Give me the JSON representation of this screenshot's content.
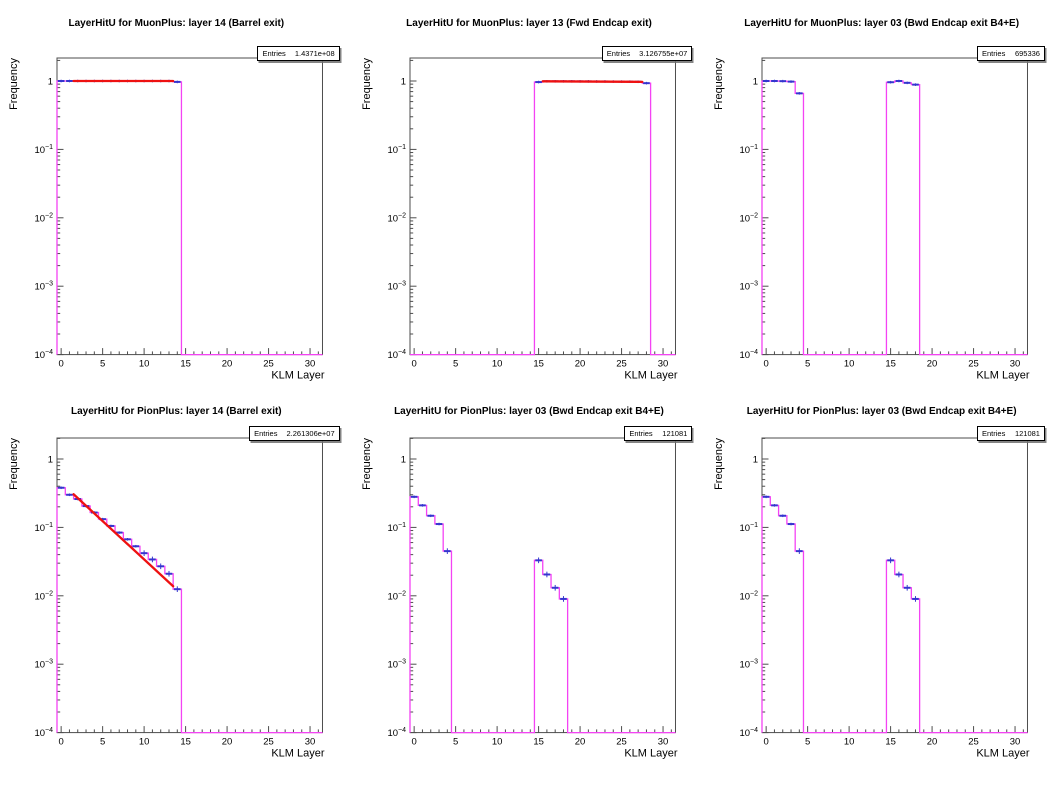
{
  "labels": {
    "entries": "Entries"
  },
  "colors": {
    "background": "#ffffff",
    "frame": "#4d4d4d",
    "hist_line": "#f443f4",
    "marker": "#3535cf",
    "fit_line": "#ee1111",
    "text": "#000000"
  },
  "axes": {
    "x": {
      "title": "KLM Layer",
      "min": -0.5,
      "max": 31.5,
      "major_ticks": [
        0,
        5,
        10,
        15,
        20,
        25,
        30
      ],
      "minor_step": 1
    },
    "y": {
      "title": "Frequency",
      "scale": "log",
      "min": 0.0001,
      "max": 2.1,
      "tick_labels": [
        {
          "v": 1,
          "label": "1"
        },
        {
          "v": 0.1,
          "label": "10^{−1}"
        },
        {
          "v": 0.01,
          "label": "10^{−2}"
        },
        {
          "v": 0.001,
          "label": "10^{−3}"
        },
        {
          "v": 0.0001,
          "label": "10^{−4}"
        }
      ]
    }
  },
  "chart_data": [
    {
      "type": "histogram-step-log",
      "row": 0,
      "title": "LayerHitU for MuonPlus: layer 14 (Barrel exit)",
      "entries": "1.4371e+08",
      "blocks": [
        {
          "x_start": -0.5,
          "bin_width": 1,
          "values": [
            1,
            1,
            1,
            1,
            1,
            1,
            1,
            1,
            1,
            1,
            1,
            1,
            1,
            1,
            0.97
          ]
        }
      ],
      "fit": {
        "x_start": 1.5,
        "y_start": 1.0,
        "x_end": 13.5,
        "y_end": 1.0
      }
    },
    {
      "type": "histogram-step-log",
      "row": 0,
      "title": "LayerHitU for MuonPlus: layer 13 (Fwd Endcap exit)",
      "entries": "3.126755e+07",
      "blocks": [
        {
          "x_start": 14.5,
          "bin_width": 1,
          "values": [
            0.965,
            0.99,
            0.99,
            0.99,
            0.99,
            0.988,
            0.988,
            0.985,
            0.985,
            0.982,
            0.98,
            0.978,
            0.975,
            0.93
          ]
        }
      ],
      "fit": {
        "x_start": 15.5,
        "y_start": 0.99,
        "x_end": 27.5,
        "y_end": 0.972
      }
    },
    {
      "type": "histogram-step-log",
      "row": 0,
      "title": "LayerHitU for MuonPlus: layer 03 (Bwd Endcap exit B4+E)",
      "entries": "695336",
      "blocks": [
        {
          "x_start": -0.5,
          "bin_width": 1,
          "values": [
            1.0,
            1.0,
            0.995,
            0.98,
            0.66
          ]
        },
        {
          "x_start": 14.5,
          "bin_width": 1,
          "values": [
            0.96,
            1.0,
            0.94,
            0.885
          ]
        }
      ],
      "fit": null
    },
    {
      "type": "histogram-step-log",
      "row": 1,
      "title": "LayerHitU for PionPlus: layer 14 (Barrel exit)",
      "entries": "2.261306e+07",
      "blocks": [
        {
          "x_start": -0.5,
          "bin_width": 1,
          "values": [
            0.38,
            0.3,
            0.26,
            0.205,
            0.165,
            0.132,
            0.105,
            0.084,
            0.067,
            0.053,
            0.042,
            0.034,
            0.027,
            0.021,
            0.0125
          ]
        }
      ],
      "fit": {
        "x_start": 1.5,
        "y_start": 0.305,
        "x_end": 13.5,
        "y_end": 0.0138
      }
    },
    {
      "type": "histogram-step-log",
      "row": 1,
      "title": "LayerHitU for PionPlus: layer 03 (Bwd Endcap exit B4+E)",
      "entries": "121081",
      "blocks": [
        {
          "x_start": -0.5,
          "bin_width": 1,
          "values": [
            0.28,
            0.21,
            0.148,
            0.112,
            0.045
          ]
        },
        {
          "x_start": 14.5,
          "bin_width": 1,
          "values": [
            0.033,
            0.0205,
            0.0131,
            0.009
          ]
        }
      ],
      "fit": null
    },
    {
      "type": "histogram-step-log",
      "row": 1,
      "title": "LayerHitU for PionPlus: layer 03 (Bwd Endcap exit B4+E)",
      "entries": "121081",
      "blocks": [
        {
          "x_start": -0.5,
          "bin_width": 1,
          "values": [
            0.28,
            0.21,
            0.148,
            0.112,
            0.045
          ]
        },
        {
          "x_start": 14.5,
          "bin_width": 1,
          "values": [
            0.033,
            0.0205,
            0.0131,
            0.009
          ]
        }
      ],
      "fit": null
    }
  ]
}
